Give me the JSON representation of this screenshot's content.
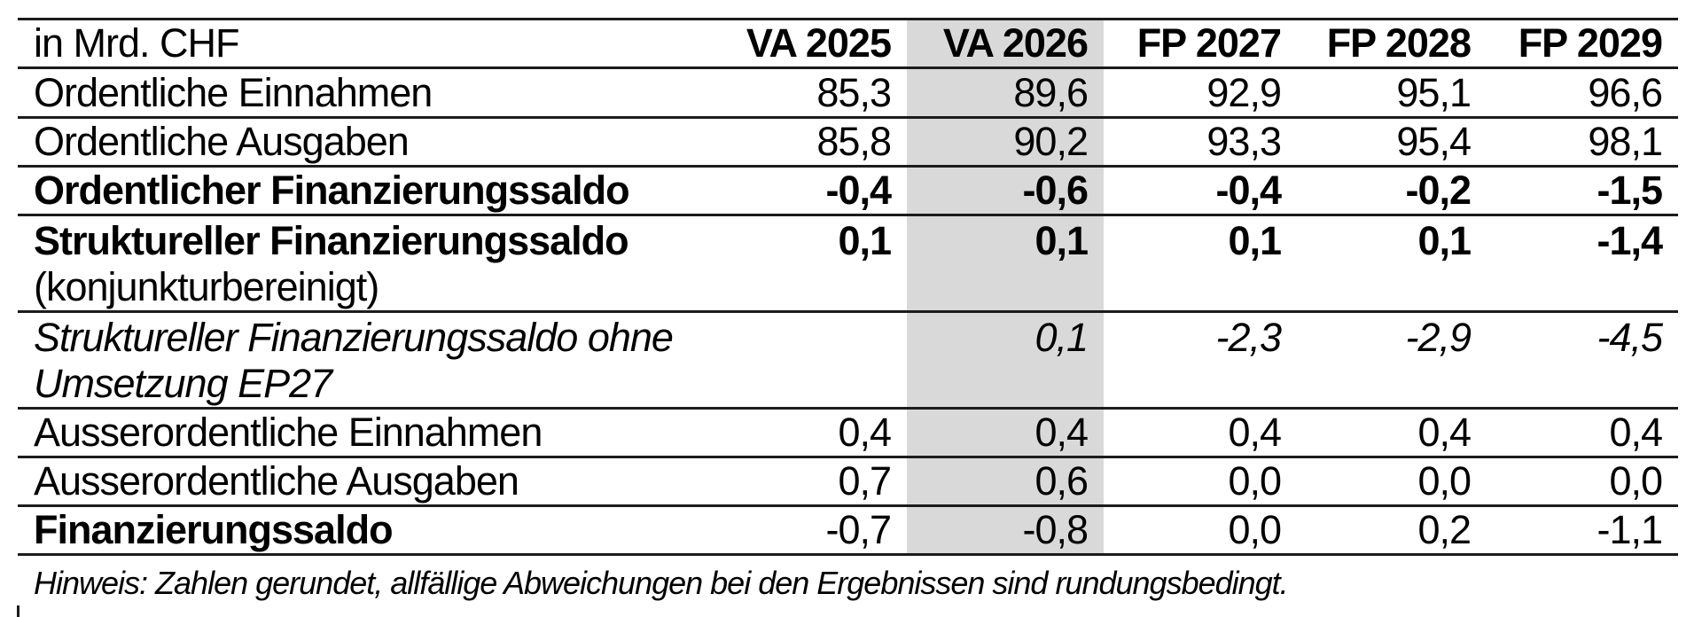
{
  "chart_data": {
    "type": "table",
    "unit_label": "in Mrd. CHF",
    "columns": [
      "VA 2025",
      "VA 2026",
      "FP 2027",
      "FP 2028",
      "FP 2029"
    ],
    "highlighted_column": "VA 2026",
    "highlight_color": "#d9d9d9",
    "rows": [
      {
        "label": "Ordentliche Einnahmen",
        "style": "normal",
        "values": [
          "85,3",
          "89,6",
          "92,9",
          "95,1",
          "96,6"
        ]
      },
      {
        "label": "Ordentliche Ausgaben",
        "style": "normal",
        "values": [
          "85,8",
          "90,2",
          "93,3",
          "95,4",
          "98,1"
        ]
      },
      {
        "label": "Ordentlicher Finanzierungssaldo",
        "style": "bold",
        "values": [
          "-0,4",
          "-0,6",
          "-0,4",
          "-0,2",
          "-1,5"
        ]
      },
      {
        "label": "Struktureller Finanzierungssaldo",
        "sublabel": "(konjunkturbereinigt)",
        "style": "bold-label-normal-sublabel",
        "values": [
          "0,1",
          "0,1",
          "0,1",
          "0,1",
          "-1,4"
        ]
      },
      {
        "label": "Struktureller Finanzierungssaldo ohne",
        "sublabel": "Umsetzung EP27",
        "style": "italic",
        "values": [
          "",
          "0,1",
          "-2,3",
          "-2,9",
          "-4,5"
        ]
      },
      {
        "label": "Ausserordentliche Einnahmen",
        "style": "normal",
        "values": [
          "0,4",
          "0,4",
          "0,4",
          "0,4",
          "0,4"
        ]
      },
      {
        "label": "Ausserordentliche Ausgaben",
        "style": "normal",
        "values": [
          "0,7",
          "0,6",
          "0,0",
          "0,0",
          "0,0"
        ]
      },
      {
        "label": "Finanzierungssaldo",
        "style": "bold-label-normal-values",
        "values": [
          "-0,7",
          "-0,8",
          "0,0",
          "0,2",
          "-1,1"
        ]
      }
    ],
    "note": "Hinweis: Zahlen gerundet, allfällige Abweichungen bei den Ergebnissen sind rundungsbedingt."
  }
}
